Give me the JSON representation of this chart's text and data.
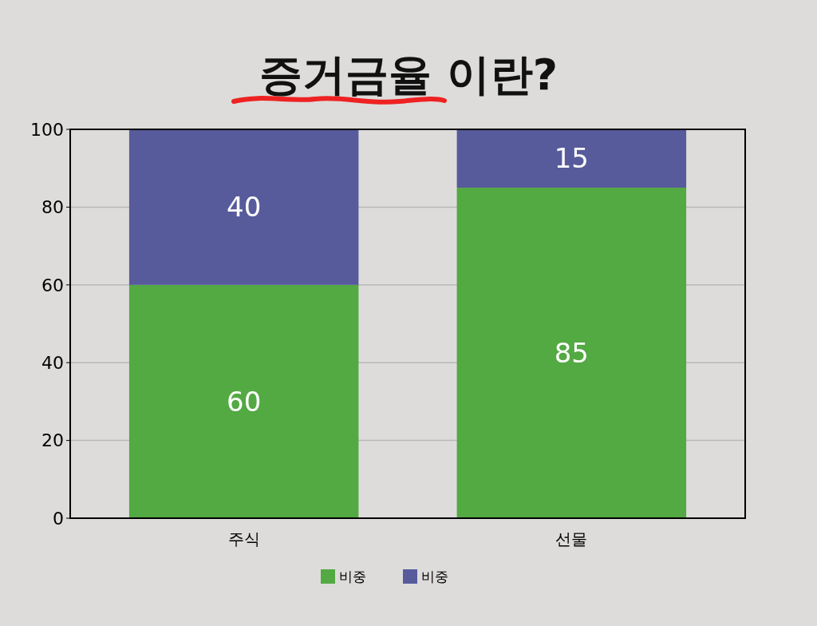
{
  "chart_data": {
    "type": "bar",
    "title": "증거금율 이란?",
    "categories": [
      "주식",
      "선물"
    ],
    "stacked": true,
    "series": [
      {
        "name": "비중",
        "color": "#53a942",
        "values": [
          60,
          85
        ]
      },
      {
        "name": "비중",
        "color": "#575b9c",
        "values": [
          40,
          15
        ]
      }
    ],
    "ylim": [
      0,
      100
    ],
    "yticks": [
      0,
      20,
      40,
      60,
      80,
      100
    ],
    "grid": "y",
    "legend": "bottom",
    "data_labels": true
  }
}
